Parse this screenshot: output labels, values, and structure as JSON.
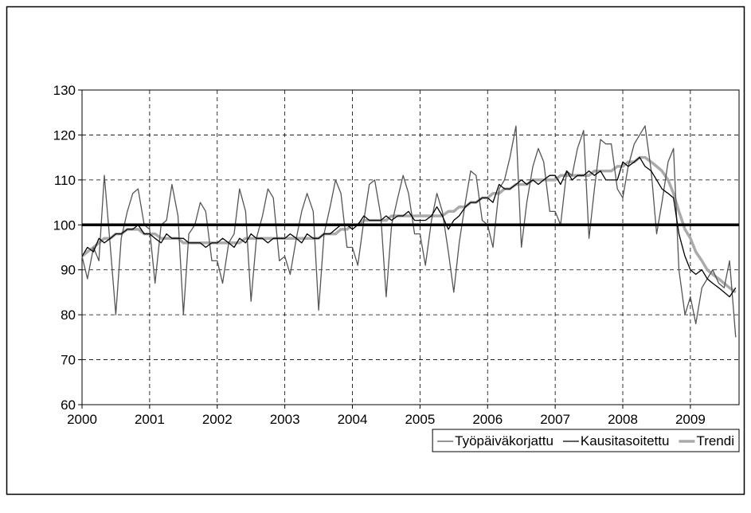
{
  "chart_data": {
    "type": "line",
    "x": [
      2000,
      2000.08,
      2000.17,
      2000.25,
      2000.33,
      2000.42,
      2000.5,
      2000.58,
      2000.67,
      2000.75,
      2000.83,
      2000.92,
      2001,
      2001.08,
      2001.17,
      2001.25,
      2001.33,
      2001.42,
      2001.5,
      2001.58,
      2001.67,
      2001.75,
      2001.83,
      2001.92,
      2002,
      2002.08,
      2002.17,
      2002.25,
      2002.33,
      2002.42,
      2002.5,
      2002.58,
      2002.67,
      2002.75,
      2002.83,
      2002.92,
      2003,
      2003.08,
      2003.17,
      2003.25,
      2003.33,
      2003.42,
      2003.5,
      2003.58,
      2003.67,
      2003.75,
      2003.83,
      2003.92,
      2004,
      2004.08,
      2004.17,
      2004.25,
      2004.33,
      2004.42,
      2004.5,
      2004.58,
      2004.67,
      2004.75,
      2004.83,
      2004.92,
      2005,
      2005.08,
      2005.17,
      2005.25,
      2005.33,
      2005.42,
      2005.5,
      2005.58,
      2005.67,
      2005.75,
      2005.83,
      2005.92,
      2006,
      2006.08,
      2006.17,
      2006.25,
      2006.33,
      2006.42,
      2006.5,
      2006.58,
      2006.67,
      2006.75,
      2006.83,
      2006.92,
      2007,
      2007.08,
      2007.17,
      2007.25,
      2007.33,
      2007.42,
      2007.5,
      2007.58,
      2007.67,
      2007.75,
      2007.83,
      2007.92,
      2008,
      2008.08,
      2008.17,
      2008.25,
      2008.33,
      2008.42,
      2008.5,
      2008.58,
      2008.67,
      2008.75,
      2008.83,
      2008.92,
      2009,
      2009.08,
      2009.17,
      2009.25,
      2009.33,
      2009.42,
      2009.5,
      2009.58,
      2009.67
    ],
    "series": [
      {
        "name": "Työpäiväkorjattu",
        "color": "#555555",
        "width": 1.3,
        "values": [
          93,
          88,
          95,
          92,
          111,
          95,
          80,
          97,
          103,
          107,
          108,
          100,
          99,
          87,
          100,
          101,
          109,
          102,
          80,
          98,
          100,
          105,
          103,
          92,
          92,
          87,
          96,
          98,
          108,
          103,
          83,
          97,
          102,
          108,
          106,
          92,
          93,
          89,
          97,
          103,
          107,
          103,
          81,
          98,
          104,
          110,
          107,
          95,
          95,
          91,
          101,
          109,
          110,
          102,
          84,
          100,
          106,
          111,
          107,
          98,
          98,
          91,
          101,
          107,
          103,
          94,
          85,
          96,
          105,
          112,
          111,
          101,
          100,
          95,
          108,
          110,
          115,
          122,
          95,
          105,
          113,
          117,
          114,
          103,
          103,
          100,
          112,
          111,
          117,
          121,
          97,
          108,
          119,
          118,
          118,
          108,
          106,
          113,
          118,
          120,
          122,
          112,
          98,
          105,
          114,
          117,
          90,
          80,
          84,
          78,
          86,
          88,
          90,
          87,
          86,
          92,
          75
        ]
      },
      {
        "name": "Kausitasoitettu",
        "color": "#000000",
        "width": 1.3,
        "values": [
          93,
          95,
          94,
          97,
          96,
          97,
          98,
          98,
          99,
          99,
          100,
          98,
          98,
          97,
          96,
          98,
          97,
          97,
          97,
          96,
          96,
          96,
          95,
          96,
          96,
          97,
          96,
          95,
          97,
          96,
          98,
          97,
          97,
          96,
          97,
          97,
          97,
          98,
          97,
          96,
          98,
          97,
          97,
          98,
          98,
          99,
          100,
          100,
          99,
          100,
          102,
          101,
          101,
          101,
          102,
          101,
          102,
          102,
          103,
          101,
          101,
          101,
          102,
          104,
          102,
          99,
          101,
          102,
          104,
          105,
          105,
          106,
          106,
          105,
          109,
          108,
          108,
          109,
          110,
          109,
          110,
          109,
          110,
          111,
          111,
          109,
          112,
          110,
          111,
          111,
          112,
          111,
          112,
          110,
          110,
          110,
          114,
          113,
          114,
          115,
          113,
          112,
          110,
          108,
          107,
          106,
          98,
          93,
          90,
          89,
          90,
          88,
          87,
          86,
          85,
          84,
          86
        ]
      },
      {
        "name": "Trendi",
        "color": "#aaaaaa",
        "width": 3.5,
        "values": [
          93,
          94,
          95,
          96,
          97,
          97,
          98,
          98,
          99,
          99,
          99,
          98,
          98,
          98,
          97,
          97,
          97,
          97,
          96,
          96,
          96,
          96,
          96,
          96,
          96,
          96,
          96,
          96,
          96,
          97,
          97,
          97,
          97,
          97,
          97,
          97,
          97,
          97,
          97,
          97,
          97,
          97,
          97,
          98,
          98,
          98,
          99,
          99,
          100,
          100,
          101,
          101,
          101,
          101,
          101,
          102,
          102,
          102,
          102,
          102,
          102,
          102,
          102,
          102,
          102,
          103,
          103,
          104,
          104,
          105,
          105,
          106,
          106,
          107,
          107,
          108,
          108,
          109,
          109,
          109,
          110,
          110,
          110,
          110,
          110,
          111,
          111,
          111,
          111,
          111,
          111,
          112,
          112,
          112,
          112,
          113,
          113,
          114,
          114,
          115,
          115,
          114,
          113,
          112,
          110,
          107,
          103,
          99,
          97,
          94,
          92,
          90,
          89,
          88,
          87,
          86,
          85
        ]
      }
    ],
    "reference_line": 100,
    "xlim": [
      2000,
      2009.72
    ],
    "xticks": [
      2000,
      2001,
      2002,
      2003,
      2004,
      2005,
      2006,
      2007,
      2008,
      2009
    ],
    "ylim": [
      60,
      130
    ],
    "yticks": [
      60,
      70,
      80,
      90,
      100,
      110,
      120,
      130
    ],
    "grid": true,
    "legend": "bottom-right"
  }
}
